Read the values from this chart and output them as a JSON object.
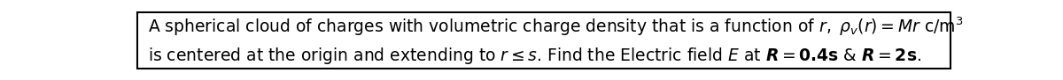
{
  "background_color": "#ffffff",
  "border_color": "#000000",
  "text_color": "#000000",
  "fontsize": 13.5,
  "fig_width": 12.0,
  "fig_height": 0.91,
  "line1": "A spherical cloud of charges with volumetric charge density that is a function of $r,\\ \\rho_v(r) = \\mathit{Mr}\\ \\mathrm{c/m}^3$",
  "line2": "is centered at the origin and extending to $\\mathit{r \\leq s}$. Find the Electric field $E$ at $\\boldsymbol{R} = \\mathbf{0.4s}$ & $\\boldsymbol{R} = \\mathbf{2s}.$"
}
